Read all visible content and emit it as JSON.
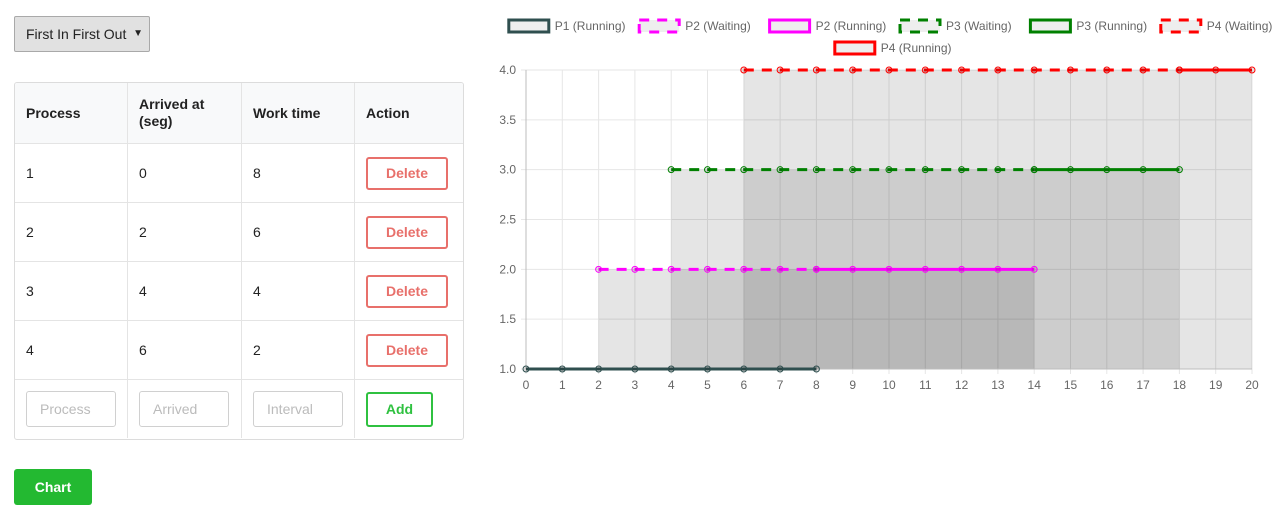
{
  "algorithm_select": {
    "value": "First In First Out"
  },
  "table": {
    "headers": {
      "process": "Process",
      "arrived": "Arrived at (seg)",
      "work": "Work time",
      "action": "Action"
    },
    "rows": [
      {
        "process": "1",
        "arrived": "0",
        "work": "8",
        "action": "Delete"
      },
      {
        "process": "2",
        "arrived": "2",
        "work": "6",
        "action": "Delete"
      },
      {
        "process": "3",
        "arrived": "4",
        "work": "4",
        "action": "Delete"
      },
      {
        "process": "4",
        "arrived": "6",
        "work": "2",
        "action": "Delete"
      }
    ],
    "new_row": {
      "process_placeholder": "Process",
      "arrived_placeholder": "Arrived",
      "work_placeholder": "Interval",
      "add_label": "Add"
    }
  },
  "chart_button": "Chart",
  "chart_data": {
    "type": "line",
    "title": "",
    "xlabel": "",
    "ylabel": "",
    "xlim": [
      0,
      20
    ],
    "ylim": [
      1.0,
      4.0
    ],
    "x_ticks": [
      "0",
      "1",
      "2",
      "3",
      "4",
      "5",
      "6",
      "7",
      "8",
      "9",
      "10",
      "11",
      "12",
      "13",
      "14",
      "15",
      "16",
      "17",
      "18",
      "19",
      "20"
    ],
    "y_ticks": [
      "1.0",
      "1.5",
      "2.0",
      "2.5",
      "3.0",
      "3.5",
      "4.0"
    ],
    "grid": true,
    "legend_position": "top",
    "series": [
      {
        "name": "P1 (Running)",
        "color": "#2f4f4f",
        "dashed": false,
        "y": 1,
        "x_start": 0,
        "x_end": 8
      },
      {
        "name": "P2 (Waiting)",
        "color": "#ff00ff",
        "dashed": true,
        "y": 2,
        "x_start": 2,
        "x_end": 8
      },
      {
        "name": "P2 (Running)",
        "color": "#ff00ff",
        "dashed": false,
        "y": 2,
        "x_start": 8,
        "x_end": 14
      },
      {
        "name": "P3 (Waiting)",
        "color": "#008000",
        "dashed": true,
        "y": 3,
        "x_start": 4,
        "x_end": 14
      },
      {
        "name": "P3 (Running)",
        "color": "#008000",
        "dashed": false,
        "y": 3,
        "x_start": 14,
        "x_end": 18
      },
      {
        "name": "P4 (Waiting)",
        "color": "#ff0000",
        "dashed": true,
        "y": 4,
        "x_start": 6,
        "x_end": 18
      },
      {
        "name": "P4 (Running)",
        "color": "#ff0000",
        "dashed": false,
        "y": 4,
        "x_start": 18,
        "x_end": 20
      }
    ]
  }
}
